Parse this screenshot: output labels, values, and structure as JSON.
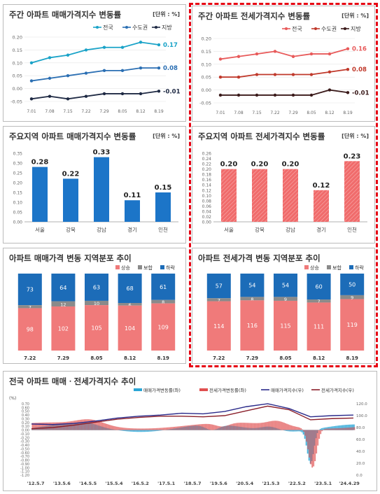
{
  "panels": {
    "p1": {
      "title": "주간 아파트 매매가격지수 변동률",
      "unit": "[단위 : %]"
    },
    "p2": {
      "title": "주간 아파트 전세가격지수 변동률",
      "unit": "[단위 : %]"
    },
    "p3": {
      "title": "주요지역 아파트 매매가격지수 변동률",
      "unit": "[단위 : %]"
    },
    "p4": {
      "title": "주요지역 아파트 전세가격지수 변동률",
      "unit": "[단위 : %]"
    },
    "p5": {
      "title": "아파트 매매가격 변동 지역분포 추이"
    },
    "p6": {
      "title": "아파트 전세가격 변동 지역분포 추이"
    },
    "p7": {
      "title": "전국 아파트 매매ㆍ전세가격지수 추이"
    }
  },
  "chart_data": [
    {
      "id": "weekly_sale",
      "type": "line",
      "x": [
        "7.01",
        "7.08",
        "7.15",
        "7.22",
        "7.29",
        "8.05",
        "8.12",
        "8.19"
      ],
      "ylim": [
        -0.05,
        0.2
      ],
      "yticks": [
        "0.20",
        "0.15",
        "0.10",
        "0.05",
        "0.00",
        "-0.05"
      ],
      "series": [
        {
          "name": "전국",
          "color": "#1aa3c8",
          "values": [
            0.1,
            0.12,
            0.13,
            0.15,
            0.16,
            0.16,
            0.18,
            0.17
          ],
          "end_label": "0.17"
        },
        {
          "name": "수도권",
          "color": "#2b6fb3",
          "values": [
            0.03,
            0.04,
            0.05,
            0.06,
            0.07,
            0.07,
            0.08,
            0.08
          ],
          "end_label": "0.08"
        },
        {
          "name": "지방",
          "color": "#1f2a44",
          "values": [
            -0.04,
            -0.03,
            -0.04,
            -0.03,
            -0.02,
            -0.02,
            -0.02,
            -0.01
          ],
          "end_label": "-0.01"
        }
      ]
    },
    {
      "id": "weekly_jeonse",
      "type": "line",
      "x": [
        "7.01",
        "7.08",
        "7.15",
        "7.22",
        "7.29",
        "8.05",
        "8.12",
        "8.19"
      ],
      "ylim": [
        -0.05,
        0.2
      ],
      "yticks": [
        "0.20",
        "0.15",
        "0.10",
        "0.05",
        "0.00",
        "-0.05"
      ],
      "series": [
        {
          "name": "전국",
          "color": "#e85a5a",
          "values": [
            0.12,
            0.13,
            0.14,
            0.15,
            0.13,
            0.14,
            0.14,
            0.16
          ],
          "end_label": "0.16"
        },
        {
          "name": "수도권",
          "color": "#c0392b",
          "values": [
            0.05,
            0.05,
            0.06,
            0.06,
            0.06,
            0.06,
            0.07,
            0.08
          ],
          "end_label": "0.08"
        },
        {
          "name": "지방",
          "color": "#3a1a1a",
          "values": [
            -0.02,
            -0.02,
            -0.02,
            -0.02,
            -0.02,
            -0.02,
            0.0,
            -0.01
          ],
          "end_label": "-0.01"
        }
      ]
    },
    {
      "id": "region_sale",
      "type": "bar",
      "categories": [
        "서울",
        "강북",
        "강남",
        "경기",
        "인천"
      ],
      "values": [
        0.28,
        0.22,
        0.33,
        0.11,
        0.15
      ],
      "labels": [
        "0.28",
        "0.22",
        "0.33",
        "0.11",
        "0.15"
      ],
      "ylim": [
        0,
        0.35
      ],
      "yticks": [
        "0.35",
        "0.30",
        "0.25",
        "0.20",
        "0.15",
        "0.10",
        "0.05",
        "0.00"
      ],
      "color": "#1c75c8"
    },
    {
      "id": "region_jeonse",
      "type": "bar",
      "categories": [
        "서울",
        "강북",
        "강남",
        "경기",
        "인천"
      ],
      "values": [
        0.2,
        0.2,
        0.2,
        0.12,
        0.23
      ],
      "labels": [
        "0.20",
        "0.20",
        "0.20",
        "0.12",
        "0.23"
      ],
      "ylim": [
        0,
        0.26
      ],
      "yticks": [
        "0.26",
        "0.24",
        "0.22",
        "0.20",
        "0.18",
        "0.16",
        "0.14",
        "0.12",
        "0.10",
        "0.08",
        "0.06",
        "0.04",
        "0.02",
        "0.00"
      ],
      "color": "#f06b6b"
    },
    {
      "id": "dist_sale",
      "type": "bar",
      "stacked": true,
      "categories": [
        "7.22",
        "7.29",
        "8.05",
        "8.12",
        "8.19"
      ],
      "legend": [
        "상승",
        "보합",
        "하락"
      ],
      "colors": [
        "#f07a7a",
        "#8a8a8a",
        "#1c6cb8"
      ],
      "series": [
        {
          "name": "상승",
          "values": [
            98,
            102,
            105,
            104,
            109
          ]
        },
        {
          "name": "보합",
          "values": [
            7,
            12,
            10,
            6,
            8
          ]
        },
        {
          "name": "하락",
          "values": [
            73,
            64,
            63,
            68,
            61
          ]
        }
      ]
    },
    {
      "id": "dist_jeonse",
      "type": "bar",
      "stacked": true,
      "categories": [
        "7.22",
        "7.29",
        "8.05",
        "8.12",
        "8.19"
      ],
      "legend": [
        "상승",
        "보합",
        "하락"
      ],
      "colors": [
        "#f07a7a",
        "#8a8a8a",
        "#1c6cb8"
      ],
      "series": [
        {
          "name": "상승",
          "values": [
            114,
            116,
            115,
            111,
            119
          ]
        },
        {
          "name": "보합",
          "values": [
            7,
            8,
            9,
            7,
            9
          ]
        },
        {
          "name": "하락",
          "values": [
            57,
            54,
            54,
            60,
            50
          ]
        }
      ]
    },
    {
      "id": "long_trend",
      "type": "area",
      "legend": [
        "매매가격변동률(좌)",
        "전세가격변동률(좌)",
        "매매가격지수(우)",
        "전세가격지수(우)"
      ],
      "colors": [
        "#2aa6d6",
        "#e05050",
        "#2a2a8a",
        "#8a1f2a"
      ],
      "y_left_label": "(%)",
      "y_left_ticks": [
        "0.70",
        "0.60",
        "0.50",
        "0.40",
        "0.30",
        "0.20",
        "0.10",
        "0.00",
        "-0.10",
        "-0.20",
        "-0.30",
        "-0.40",
        "-0.50",
        "-0.60",
        "-0.70",
        "-0.80",
        "-0.90",
        "-1.00",
        "-1.10",
        "-1.20"
      ],
      "y_right_ticks": [
        "120.0",
        "100.0",
        "80.0",
        "60.0",
        "40.0",
        "20.0",
        "0.0"
      ],
      "x_ticks": [
        "'12.5.7",
        "'13.5.6",
        "'14.5.5",
        "'15.5.4",
        "'16.5.2",
        "'17.5.1",
        "'18.5.7",
        "'19.5.6",
        "'20.5.4",
        "'21.5.3",
        "'22.5.2",
        "'23.5.1",
        "'24.4.29"
      ],
      "sale_index": [
        86,
        85,
        87,
        91,
        96,
        99,
        101,
        104,
        103,
        107,
        115,
        120,
        112,
        98,
        100,
        101
      ],
      "jeonse_index": [
        78,
        80,
        84,
        89,
        94,
        97,
        99,
        99,
        98,
        100,
        108,
        116,
        110,
        93,
        95,
        96
      ]
    }
  ]
}
